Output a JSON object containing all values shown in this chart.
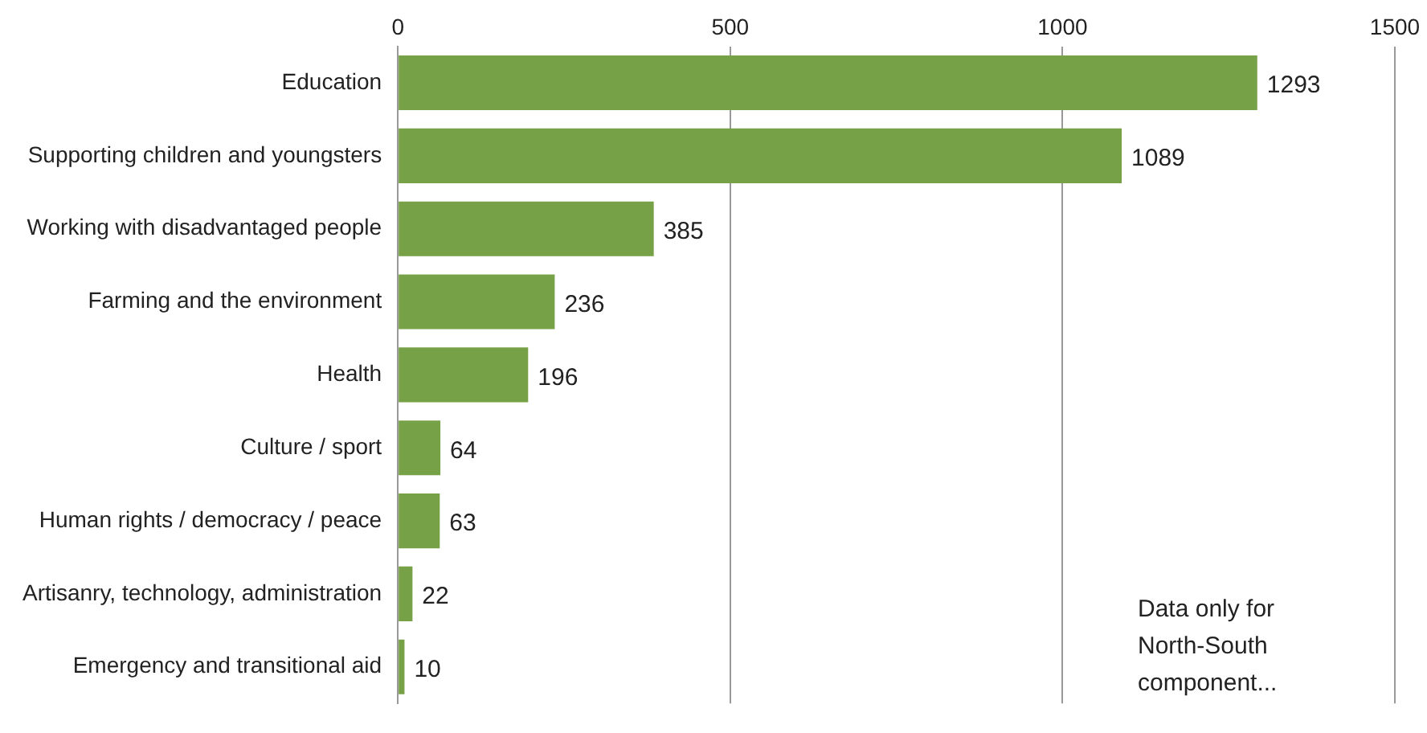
{
  "chart_data": {
    "type": "bar",
    "orientation": "horizontal",
    "categories": [
      "Education",
      "Supporting children and youngsters",
      "Working with disadvantaged people",
      "Farming and the environment",
      "Health",
      "Culture / sport",
      "Human rights / democracy / peace",
      "Artisanry, technology, administration",
      "Emergency and transitional aid"
    ],
    "values": [
      1293,
      1089,
      385,
      236,
      196,
      64,
      63,
      22,
      10
    ],
    "color": "#77a146",
    "xlim": [
      0,
      1500
    ],
    "xticks": [
      0,
      500,
      1000,
      1500
    ],
    "grid": "x",
    "legend": false,
    "data_labels": true,
    "annotations": [
      "Data only for North-South component..."
    ]
  }
}
